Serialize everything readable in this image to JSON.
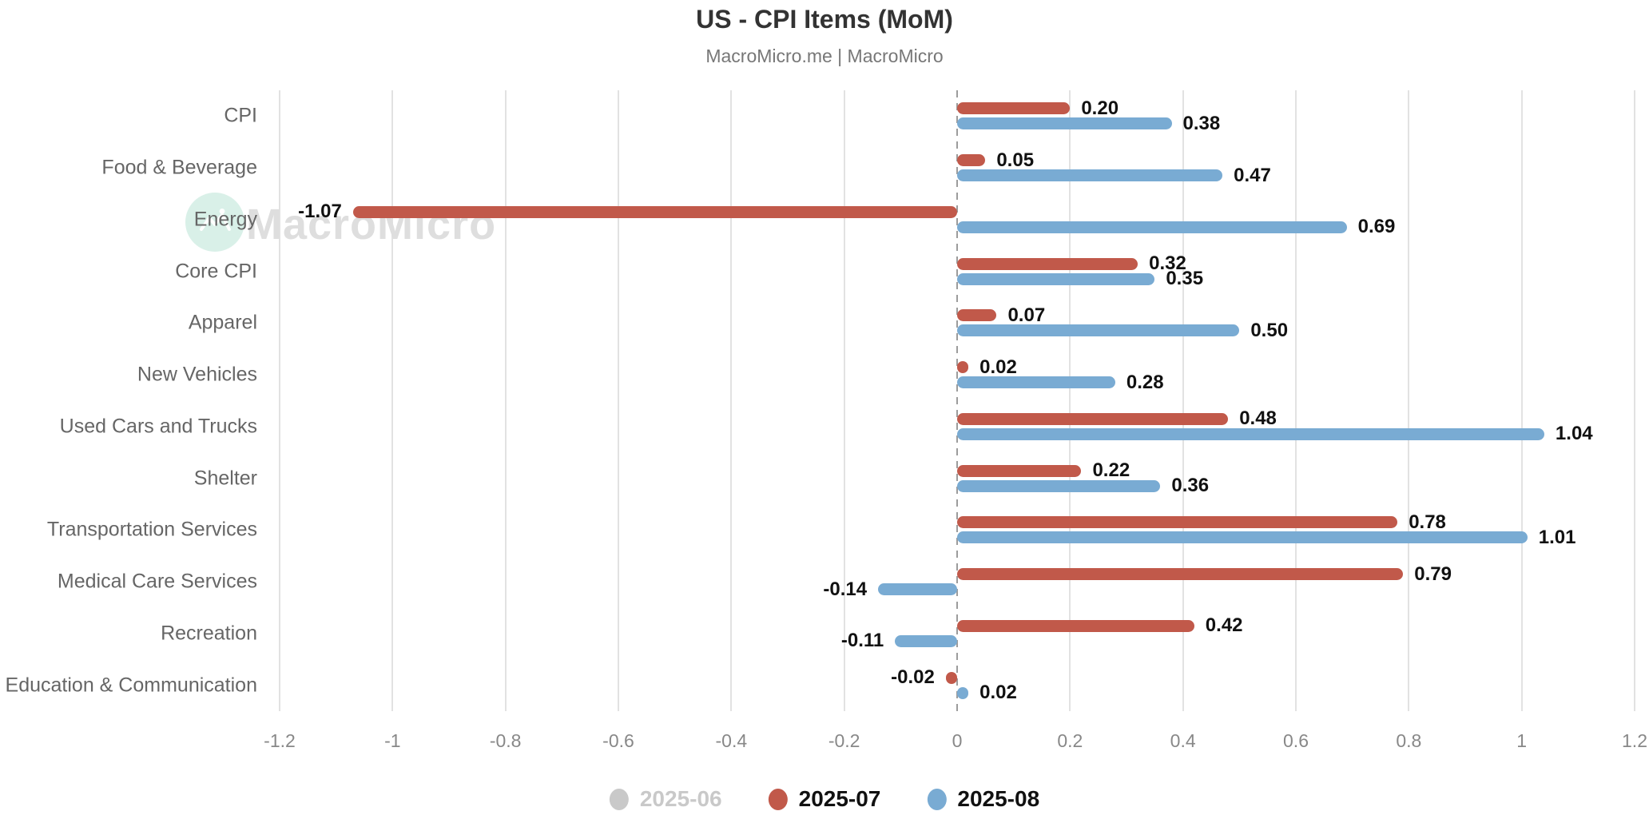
{
  "title": "US - CPI Items (MoM)",
  "subtitle": "MacroMicro.me | MacroMicro",
  "watermark": {
    "text": "MacroMicro",
    "circle_color": "#d9f0e8"
  },
  "legend": {
    "disabled_color": "#c9c9c9",
    "active_text_color": "#111111"
  },
  "chart_data": {
    "type": "bar",
    "orientation": "horizontal",
    "title": "US - CPI Items (MoM)",
    "subtitle": "MacroMicro.me | MacroMicro",
    "categories": [
      "CPI",
      "Food & Beverage",
      "Energy",
      "Core CPI",
      "Apparel",
      "New Vehicles",
      "Used Cars and Trucks",
      "Shelter",
      "Transportation Services",
      "Medical Care Services",
      "Recreation",
      "Education & Communication"
    ],
    "series": [
      {
        "name": "2025-06",
        "color": "#c9c9c9",
        "enabled": false,
        "values": null
      },
      {
        "name": "2025-07",
        "color": "#c1594a",
        "enabled": true,
        "values": [
          0.2,
          0.05,
          -1.07,
          0.32,
          0.07,
          0.02,
          0.48,
          0.22,
          0.78,
          0.79,
          0.42,
          -0.02
        ]
      },
      {
        "name": "2025-08",
        "color": "#79abd3",
        "enabled": true,
        "values": [
          0.38,
          0.47,
          0.69,
          0.35,
          0.5,
          0.28,
          1.04,
          0.36,
          1.01,
          -0.14,
          -0.11,
          0.02
        ]
      }
    ],
    "xlim": [
      -1.2,
      1.2
    ],
    "xtick_labels": [
      "-1.2",
      "-1",
      "-0.8",
      "-0.6",
      "-0.4",
      "-0.2",
      "0",
      "0.2",
      "0.4",
      "0.6",
      "0.8",
      "1",
      "1.2"
    ],
    "xlabel": "",
    "ylabel": "",
    "grid": "vertical",
    "legend_position": "bottom",
    "value_labels": "two-decimals"
  }
}
